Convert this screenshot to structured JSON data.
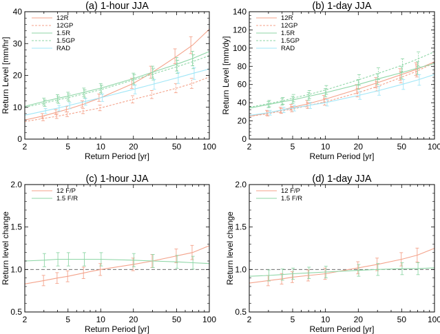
{
  "chart_data": [
    {
      "type": "line",
      "title": "(a) 1-hour JJA",
      "xlabel": "Return Period [yr]",
      "ylabel": "Return Level [mm/hr]",
      "xscale": "log",
      "xlim": [
        2,
        100
      ],
      "ylim": [
        0,
        40
      ],
      "xticks": [
        2,
        5,
        10,
        20,
        50,
        100
      ],
      "yticks": [
        0,
        10,
        20,
        30,
        40
      ],
      "legend": [
        "12R",
        "12GP",
        "1.5R",
        "1.5GP",
        "RAD"
      ],
      "legend_position": "top-left",
      "series": [
        {
          "name": "12R",
          "color": "#f4a28a",
          "dash": "solid",
          "x": [
            2,
            3,
            4,
            5,
            7,
            10,
            20,
            30,
            50,
            70,
            100
          ],
          "values": [
            6.0,
            7.3,
            8.5,
            9.4,
            11.0,
            13.0,
            17.5,
            21.0,
            26.0,
            29.5,
            34.5
          ]
        },
        {
          "name": "12GP",
          "color": "#f4a28a",
          "dash": "dotted",
          "x": [
            2,
            3,
            4,
            5,
            7,
            10,
            20,
            30,
            50,
            70,
            100
          ],
          "values": [
            5.5,
            6.5,
            7.2,
            7.8,
            8.8,
            9.8,
            12.5,
            14.0,
            16.0,
            17.5,
            19.5
          ]
        },
        {
          "name": "1.5R",
          "color": "#8ed6a6",
          "dash": "solid",
          "x": [
            2,
            3,
            4,
            5,
            7,
            10,
            20,
            30,
            50,
            70,
            100
          ],
          "values": [
            10.3,
            11.8,
            12.8,
            13.5,
            14.7,
            16.0,
            19.0,
            21.0,
            23.5,
            25.3,
            27.5
          ]
        },
        {
          "name": "1.5GP",
          "color": "#8ed6a6",
          "dash": "dotted",
          "x": [
            2,
            3,
            4,
            5,
            7,
            10,
            20,
            30,
            50,
            70,
            100
          ],
          "values": [
            10.0,
            11.3,
            12.3,
            13.0,
            14.2,
            15.5,
            18.6,
            20.4,
            22.7,
            24.3,
            26.2
          ]
        },
        {
          "name": "RAD",
          "color": "#9fe6f7",
          "dash": "solid",
          "x": [
            2,
            3,
            4,
            5,
            7,
            10,
            20,
            30,
            50,
            70,
            100
          ],
          "values": [
            7.5,
            8.8,
            9.7,
            10.5,
            11.7,
            13.0,
            15.6,
            17.2,
            19.2,
            20.6,
            22.0
          ]
        }
      ]
    },
    {
      "type": "line",
      "title": "(b) 1-day JJA",
      "xlabel": "Return Period [yr]",
      "ylabel": "Return Level [mm/dy]",
      "xscale": "log",
      "xlim": [
        2,
        100
      ],
      "ylim": [
        0,
        140
      ],
      "xticks": [
        2,
        5,
        10,
        20,
        50,
        100
      ],
      "yticks": [
        0,
        20,
        40,
        60,
        80,
        100,
        120,
        140
      ],
      "legend": [
        "12R",
        "12GP",
        "1.5R",
        "1.5GP",
        "RAD"
      ],
      "legend_position": "top-left",
      "series": [
        {
          "name": "12R",
          "color": "#f4a28a",
          "dash": "solid",
          "x": [
            2,
            3,
            4,
            5,
            7,
            10,
            20,
            30,
            50,
            70,
            100
          ],
          "values": [
            25,
            29,
            32,
            35,
            39,
            44,
            55,
            62,
            71,
            77,
            85
          ]
        },
        {
          "name": "12GP",
          "color": "#f4a28a",
          "dash": "dotted",
          "x": [
            2,
            3,
            4,
            5,
            7,
            10,
            20,
            30,
            50,
            70,
            100
          ],
          "values": [
            25,
            28,
            31,
            33,
            37,
            41,
            51,
            58,
            68,
            75,
            84
          ]
        },
        {
          "name": "1.5R",
          "color": "#8ed6a6",
          "dash": "solid",
          "x": [
            2,
            3,
            4,
            5,
            7,
            10,
            20,
            30,
            50,
            70,
            100
          ],
          "values": [
            34,
            38,
            41,
            43,
            47,
            51,
            60,
            66,
            73,
            78,
            83
          ]
        },
        {
          "name": "1.5GP",
          "color": "#8ed6a6",
          "dash": "dotted",
          "x": [
            2,
            3,
            4,
            5,
            7,
            10,
            20,
            30,
            50,
            70,
            100
          ],
          "values": [
            35,
            39,
            42,
            45,
            49,
            54,
            65,
            72,
            81,
            88,
            96
          ]
        },
        {
          "name": "RAD",
          "color": "#9fe6f7",
          "dash": "solid",
          "x": [
            2,
            3,
            4,
            5,
            7,
            10,
            20,
            30,
            50,
            70,
            100
          ],
          "values": [
            26,
            29,
            32,
            34,
            37,
            40,
            48,
            53,
            60,
            65,
            71
          ]
        }
      ]
    },
    {
      "type": "line",
      "title": "(c) 1-hour JJA",
      "xlabel": "Return Period [yr]",
      "ylabel": "Return level change",
      "xscale": "log",
      "xlim": [
        2,
        100
      ],
      "ylim": [
        0.5,
        2.0
      ],
      "xticks": [
        2,
        5,
        10,
        20,
        50,
        100
      ],
      "yticks": [
        0.5,
        1.0,
        1.5,
        2.0
      ],
      "reference_line": 1.0,
      "legend": [
        "12 F/P",
        "1.5 F/R"
      ],
      "legend_position": "top-left",
      "series": [
        {
          "name": "12 F/P",
          "color": "#f4a28a",
          "dash": "solid",
          "x": [
            2,
            3,
            4,
            5,
            7,
            10,
            20,
            30,
            50,
            70,
            100
          ],
          "values": [
            0.83,
            0.87,
            0.9,
            0.92,
            0.96,
            1.0,
            1.06,
            1.1,
            1.16,
            1.2,
            1.28
          ]
        },
        {
          "name": "1.5 F/R",
          "color": "#8ed6a6",
          "dash": "solid",
          "x": [
            2,
            3,
            4,
            5,
            7,
            10,
            20,
            30,
            50,
            70,
            100
          ],
          "values": [
            1.1,
            1.11,
            1.12,
            1.12,
            1.12,
            1.12,
            1.11,
            1.1,
            1.09,
            1.08,
            1.07
          ]
        }
      ]
    },
    {
      "type": "line",
      "title": "(d) 1-day JJA",
      "xlabel": "Return Period [yr]",
      "ylabel": "Return level change",
      "xscale": "log",
      "xlim": [
        2,
        100
      ],
      "ylim": [
        0.5,
        2.0
      ],
      "xticks": [
        2,
        5,
        10,
        20,
        50,
        100
      ],
      "yticks": [
        0.5,
        1.0,
        1.5,
        2.0
      ],
      "reference_line": 1.0,
      "legend": [
        "12 F/P",
        "1.5 F/R"
      ],
      "legend_position": "top-left",
      "series": [
        {
          "name": "12 F/P",
          "color": "#f4a28a",
          "dash": "solid",
          "x": [
            2,
            3,
            4,
            5,
            7,
            10,
            20,
            30,
            50,
            70,
            100
          ],
          "values": [
            0.84,
            0.87,
            0.89,
            0.91,
            0.93,
            0.95,
            1.02,
            1.06,
            1.12,
            1.17,
            1.25
          ]
        },
        {
          "name": "1.5 F/R",
          "color": "#8ed6a6",
          "dash": "solid",
          "x": [
            2,
            3,
            4,
            5,
            7,
            10,
            20,
            30,
            50,
            70,
            100
          ],
          "values": [
            0.92,
            0.93,
            0.94,
            0.95,
            0.96,
            0.97,
            0.99,
            1.0,
            1.01,
            1.01,
            1.02
          ]
        }
      ]
    }
  ]
}
